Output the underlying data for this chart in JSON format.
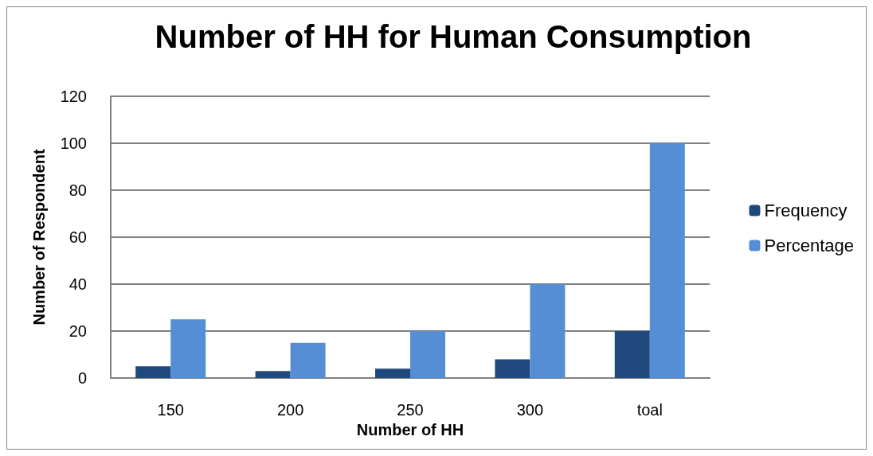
{
  "chart_data": {
    "type": "bar",
    "title": "Number of HH for Human Consumption",
    "xlabel": "Number of HH",
    "ylabel": "Number of Respondent",
    "categories": [
      "150",
      "200",
      "250",
      "300",
      "toal"
    ],
    "series": [
      {
        "name": "Frequency",
        "color": "#1f497d",
        "values": [
          5,
          3,
          4,
          8,
          20
        ]
      },
      {
        "name": "Percentage",
        "color": "#558ed5",
        "values": [
          25,
          15,
          20,
          40,
          100
        ]
      }
    ],
    "ylim": [
      0,
      120
    ],
    "yticks": [
      0,
      20,
      40,
      60,
      80,
      100,
      120
    ],
    "grid": "y",
    "legend": "right"
  }
}
